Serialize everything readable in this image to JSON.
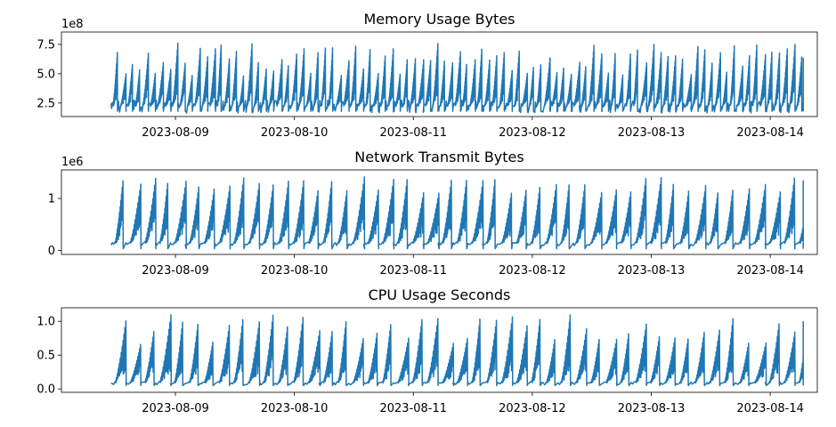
{
  "chart_data": [
    {
      "type": "line",
      "title": "Memory Usage Bytes",
      "offset_label": "1e8",
      "x_ticks": [
        "2023-08-09",
        "2023-08-10",
        "2023-08-11",
        "2023-08-12",
        "2023-08-13",
        "2023-08-14"
      ],
      "y_ticks": [
        "2.5",
        "5.0",
        "7.5"
      ],
      "y_tick_values": [
        2.5,
        5.0,
        7.5
      ],
      "x_range": [
        "2023-08-08 01:00",
        "2023-08-14 09:30"
      ],
      "ylim": [
        1.35,
        8.55
      ],
      "series": [
        {
          "color": "#1f77b4",
          "x_start": "2023-08-08 11:00",
          "x_end": "2023-08-14 06:40",
          "baseline": 2.2,
          "peak_low": 4.8,
          "peak_high": 7.6,
          "cycles_per_day": 16,
          "trough": 1.8
        }
      ]
    },
    {
      "type": "line",
      "title": "Network Transmit Bytes",
      "offset_label": "1e6",
      "x_ticks": [
        "2023-08-09",
        "2023-08-10",
        "2023-08-11",
        "2023-08-12",
        "2023-08-13",
        "2023-08-14"
      ],
      "y_ticks": [
        "0",
        "1"
      ],
      "y_tick_values": [
        0,
        1
      ],
      "x_range": [
        "2023-08-08 01:00",
        "2023-08-14 09:30"
      ],
      "ylim": [
        -0.08,
        1.55
      ],
      "series": [
        {
          "color": "#1f77b4",
          "x_start": "2023-08-08 11:00",
          "x_end": "2023-08-14 06:40",
          "baseline": 0.12,
          "peak_low": 1.1,
          "peak_high": 1.42,
          "cycles_per_day": 8,
          "trough": 0.03
        }
      ]
    },
    {
      "type": "line",
      "title": "CPU Usage Seconds",
      "offset_label": "",
      "x_ticks": [
        "2023-08-09",
        "2023-08-10",
        "2023-08-11",
        "2023-08-12",
        "2023-08-13",
        "2023-08-14"
      ],
      "y_ticks": [
        "0.0",
        "0.5",
        "1.0"
      ],
      "y_tick_values": [
        0.0,
        0.5,
        1.0
      ],
      "x_range": [
        "2023-08-08 01:00",
        "2023-08-14 09:30"
      ],
      "ylim": [
        -0.05,
        1.2
      ],
      "series": [
        {
          "color": "#1f77b4",
          "x_start": "2023-08-08 11:00",
          "x_end": "2023-08-14 06:40",
          "baseline": 0.08,
          "peak_low": 0.65,
          "peak_high": 1.1,
          "cycles_per_day": 8,
          "trough": 0.05
        }
      ]
    }
  ]
}
